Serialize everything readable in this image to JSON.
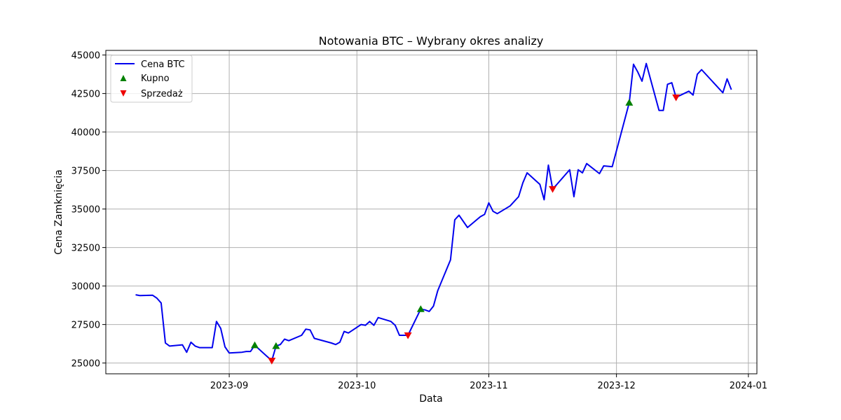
{
  "chart_data": {
    "type": "line",
    "title": "Notowania BTC – Wybrany okres analizy",
    "xlabel": "Data",
    "ylabel": "Cena Zamknięcia",
    "x_axis_type": "date",
    "xlim": [
      "2023-08-03",
      "2024-01-03"
    ],
    "ylim": [
      24300,
      45300
    ],
    "x_ticks": [
      {
        "date": "2023-09-01",
        "label": "2023-09"
      },
      {
        "date": "2023-10-01",
        "label": "2023-10"
      },
      {
        "date": "2023-11-01",
        "label": "2023-11"
      },
      {
        "date": "2023-12-01",
        "label": "2023-12"
      },
      {
        "date": "2024-01-01",
        "label": "2024-01"
      }
    ],
    "y_ticks": [
      25000,
      27500,
      30000,
      32500,
      35000,
      37500,
      40000,
      42500,
      45000
    ],
    "grid": true,
    "legend_position": "top-left",
    "colors": {
      "price": "#0000ee",
      "buy": "#008000",
      "sell": "#ee0000",
      "grid": "#b0b0b0"
    },
    "series": [
      {
        "name": "Cena BTC",
        "kind": "line",
        "points": [
          [
            "2023-08-10",
            29430
          ],
          [
            "2023-08-11",
            29380
          ],
          [
            "2023-08-14",
            29400
          ],
          [
            "2023-08-15",
            29210
          ],
          [
            "2023-08-16",
            28900
          ],
          [
            "2023-08-17",
            26300
          ],
          [
            "2023-08-18",
            26100
          ],
          [
            "2023-08-21",
            26180
          ],
          [
            "2023-08-22",
            25700
          ],
          [
            "2023-08-23",
            26350
          ],
          [
            "2023-08-24",
            26100
          ],
          [
            "2023-08-25",
            26000
          ],
          [
            "2023-08-28",
            26000
          ],
          [
            "2023-08-29",
            27700
          ],
          [
            "2023-08-30",
            27250
          ],
          [
            "2023-08-31",
            26050
          ],
          [
            "2023-09-01",
            25650
          ],
          [
            "2023-09-04",
            25700
          ],
          [
            "2023-09-05",
            25750
          ],
          [
            "2023-09-06",
            25750
          ],
          [
            "2023-09-07",
            26150
          ],
          [
            "2023-09-11",
            25150
          ],
          [
            "2023-09-12",
            26100
          ],
          [
            "2023-09-13",
            26200
          ],
          [
            "2023-09-14",
            26550
          ],
          [
            "2023-09-15",
            26450
          ],
          [
            "2023-09-18",
            26800
          ],
          [
            "2023-09-19",
            27200
          ],
          [
            "2023-09-20",
            27150
          ],
          [
            "2023-09-21",
            26600
          ],
          [
            "2023-09-25",
            26300
          ],
          [
            "2023-09-26",
            26200
          ],
          [
            "2023-09-27",
            26350
          ],
          [
            "2023-09-28",
            27050
          ],
          [
            "2023-09-29",
            26950
          ],
          [
            "2023-10-02",
            27500
          ],
          [
            "2023-10-03",
            27450
          ],
          [
            "2023-10-04",
            27700
          ],
          [
            "2023-10-05",
            27450
          ],
          [
            "2023-10-06",
            27950
          ],
          [
            "2023-10-09",
            27700
          ],
          [
            "2023-10-10",
            27450
          ],
          [
            "2023-10-11",
            26800
          ],
          [
            "2023-10-12",
            26800
          ],
          [
            "2023-10-13",
            26800
          ],
          [
            "2023-10-16",
            28500
          ],
          [
            "2023-10-17",
            28450
          ],
          [
            "2023-10-18",
            28350
          ],
          [
            "2023-10-19",
            28700
          ],
          [
            "2023-10-20",
            29700
          ],
          [
            "2023-10-23",
            31700
          ],
          [
            "2023-10-24",
            34300
          ],
          [
            "2023-10-25",
            34600
          ],
          [
            "2023-10-27",
            33800
          ],
          [
            "2023-10-30",
            34500
          ],
          [
            "2023-10-31",
            34650
          ],
          [
            "2023-11-01",
            35400
          ],
          [
            "2023-11-02",
            34850
          ],
          [
            "2023-11-03",
            34700
          ],
          [
            "2023-11-06",
            35200
          ],
          [
            "2023-11-07",
            35500
          ],
          [
            "2023-11-08",
            35800
          ],
          [
            "2023-11-09",
            36700
          ],
          [
            "2023-11-10",
            37350
          ],
          [
            "2023-11-13",
            36600
          ],
          [
            "2023-11-14",
            35600
          ],
          [
            "2023-11-15",
            37850
          ],
          [
            "2023-11-16",
            36300
          ],
          [
            "2023-11-17",
            36600
          ],
          [
            "2023-11-20",
            37550
          ],
          [
            "2023-11-21",
            35800
          ],
          [
            "2023-11-22",
            37550
          ],
          [
            "2023-11-23",
            37350
          ],
          [
            "2023-11-24",
            37950
          ],
          [
            "2023-11-27",
            37300
          ],
          [
            "2023-11-28",
            37800
          ],
          [
            "2023-11-30",
            37750
          ],
          [
            "2023-12-04",
            41900
          ],
          [
            "2023-12-05",
            44400
          ],
          [
            "2023-12-06",
            43900
          ],
          [
            "2023-12-07",
            43300
          ],
          [
            "2023-12-08",
            44450
          ],
          [
            "2023-12-11",
            41400
          ],
          [
            "2023-12-12",
            41400
          ],
          [
            "2023-12-13",
            43100
          ],
          [
            "2023-12-14",
            43200
          ],
          [
            "2023-12-15",
            42250
          ],
          [
            "2023-12-18",
            42650
          ],
          [
            "2023-12-19",
            42400
          ],
          [
            "2023-12-20",
            43750
          ],
          [
            "2023-12-21",
            44050
          ],
          [
            "2023-12-26",
            42550
          ],
          [
            "2023-12-27",
            43450
          ],
          [
            "2023-12-28",
            42750
          ]
        ]
      },
      {
        "name": "Kupno",
        "kind": "marker",
        "marker": "triangle-up",
        "points": [
          [
            "2023-09-07",
            26150
          ],
          [
            "2023-09-12",
            26100
          ],
          [
            "2023-10-16",
            28500
          ],
          [
            "2023-12-04",
            41900
          ]
        ]
      },
      {
        "name": "Sprzedaż",
        "kind": "marker",
        "marker": "triangle-down",
        "points": [
          [
            "2023-09-11",
            25150
          ],
          [
            "2023-10-13",
            26800
          ],
          [
            "2023-11-16",
            36300
          ],
          [
            "2023-12-15",
            42250
          ]
        ]
      }
    ]
  }
}
